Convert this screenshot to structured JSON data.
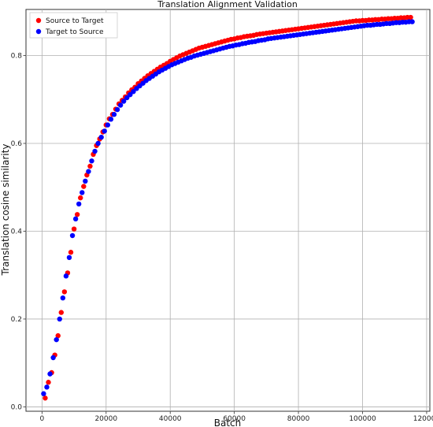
{
  "chart_data": {
    "type": "scatter",
    "title": "Translation Alignment Validation",
    "xlabel": "Batch",
    "ylabel": "Translation cosine similarity",
    "xlim": [
      -5000,
      121000
    ],
    "ylim": [
      -0.01,
      0.905
    ],
    "xticks": [
      0,
      20000,
      40000,
      60000,
      80000,
      100000,
      120000
    ],
    "yticks": [
      0.0,
      0.2,
      0.4,
      0.6,
      0.8
    ],
    "xtick_labels": [
      "0",
      "20000",
      "40000",
      "60000",
      "80000",
      "100000",
      "120000"
    ],
    "ytick_labels": [
      "0.0",
      "0.2",
      "0.4",
      "0.6",
      "0.8"
    ],
    "grid": true,
    "legend_position": "top-left",
    "series": [
      {
        "name": "Source to Target",
        "color": "#ff0000",
        "points": [
          [
            1000,
            0.02
          ],
          [
            2000,
            0.056
          ],
          [
            3000,
            0.078
          ],
          [
            4000,
            0.118
          ],
          [
            5000,
            0.162
          ],
          [
            6000,
            0.215
          ],
          [
            7000,
            0.262
          ],
          [
            8000,
            0.305
          ],
          [
            9000,
            0.352
          ],
          [
            10000,
            0.405
          ],
          [
            11000,
            0.438
          ],
          [
            12000,
            0.476
          ],
          [
            13000,
            0.502
          ],
          [
            14000,
            0.528
          ],
          [
            15000,
            0.548
          ],
          [
            16000,
            0.575
          ],
          [
            17000,
            0.595
          ],
          [
            18000,
            0.61
          ],
          [
            19000,
            0.626
          ],
          [
            20000,
            0.642
          ],
          [
            21000,
            0.656
          ],
          [
            22000,
            0.666
          ],
          [
            23000,
            0.678
          ],
          [
            24000,
            0.69
          ],
          [
            25000,
            0.698
          ],
          [
            26000,
            0.706
          ],
          [
            27000,
            0.715
          ],
          [
            28000,
            0.722
          ],
          [
            29000,
            0.728
          ],
          [
            30000,
            0.736
          ],
          [
            31000,
            0.742
          ],
          [
            32000,
            0.748
          ],
          [
            33000,
            0.754
          ],
          [
            34000,
            0.759
          ],
          [
            35000,
            0.764
          ],
          [
            36000,
            0.769
          ],
          [
            37000,
            0.774
          ],
          [
            38000,
            0.778
          ],
          [
            39000,
            0.782
          ],
          [
            40000,
            0.787
          ],
          [
            41000,
            0.791
          ],
          [
            42000,
            0.795
          ],
          [
            43000,
            0.799
          ],
          [
            44000,
            0.802
          ],
          [
            45000,
            0.805
          ],
          [
            46000,
            0.808
          ],
          [
            47000,
            0.811
          ],
          [
            48000,
            0.814
          ],
          [
            49000,
            0.817
          ],
          [
            50000,
            0.819
          ],
          [
            51000,
            0.821
          ],
          [
            52000,
            0.823
          ],
          [
            53000,
            0.825
          ],
          [
            54000,
            0.827
          ],
          [
            55000,
            0.829
          ],
          [
            56000,
            0.831
          ],
          [
            57000,
            0.833
          ],
          [
            58000,
            0.835
          ],
          [
            59000,
            0.837
          ],
          [
            60000,
            0.838
          ],
          [
            61000,
            0.84
          ],
          [
            62000,
            0.841
          ],
          [
            63000,
            0.843
          ],
          [
            64000,
            0.844
          ],
          [
            65000,
            0.845
          ],
          [
            66000,
            0.846
          ],
          [
            67000,
            0.848
          ],
          [
            68000,
            0.849
          ],
          [
            69000,
            0.85
          ],
          [
            70000,
            0.851
          ],
          [
            71000,
            0.852
          ],
          [
            72000,
            0.853
          ],
          [
            73000,
            0.854
          ],
          [
            74000,
            0.855
          ],
          [
            75000,
            0.856
          ],
          [
            76000,
            0.857
          ],
          [
            77000,
            0.858
          ],
          [
            78000,
            0.859
          ],
          [
            79000,
            0.86
          ],
          [
            80000,
            0.861
          ],
          [
            81000,
            0.862
          ],
          [
            82000,
            0.863
          ],
          [
            83000,
            0.864
          ],
          [
            84000,
            0.865
          ],
          [
            85000,
            0.866
          ],
          [
            86000,
            0.867
          ],
          [
            87000,
            0.868
          ],
          [
            88000,
            0.869
          ],
          [
            89000,
            0.87
          ],
          [
            90000,
            0.871
          ],
          [
            91000,
            0.872
          ],
          [
            92000,
            0.873
          ],
          [
            93000,
            0.874
          ],
          [
            94000,
            0.875
          ],
          [
            95000,
            0.876
          ],
          [
            96000,
            0.877
          ],
          [
            97000,
            0.878
          ],
          [
            98000,
            0.879
          ],
          [
            99000,
            0.879
          ],
          [
            100000,
            0.88
          ],
          [
            101000,
            0.88
          ],
          [
            102000,
            0.881
          ],
          [
            103000,
            0.881
          ],
          [
            104000,
            0.882
          ],
          [
            105000,
            0.882
          ],
          [
            106000,
            0.883
          ],
          [
            107000,
            0.883
          ],
          [
            108000,
            0.884
          ],
          [
            109000,
            0.884
          ],
          [
            110000,
            0.885
          ],
          [
            111000,
            0.885
          ],
          [
            112000,
            0.886
          ],
          [
            113000,
            0.886
          ],
          [
            114000,
            0.887
          ],
          [
            115000,
            0.887
          ]
        ]
      },
      {
        "name": "Target to Source",
        "color": "#0000ff",
        "points": [
          [
            500,
            0.03
          ],
          [
            1500,
            0.045
          ],
          [
            2500,
            0.075
          ],
          [
            3500,
            0.112
          ],
          [
            4500,
            0.153
          ],
          [
            5500,
            0.2
          ],
          [
            6500,
            0.248
          ],
          [
            7500,
            0.298
          ],
          [
            8500,
            0.34
          ],
          [
            9500,
            0.39
          ],
          [
            10500,
            0.428
          ],
          [
            11500,
            0.462
          ],
          [
            12500,
            0.488
          ],
          [
            13500,
            0.514
          ],
          [
            14500,
            0.536
          ],
          [
            15500,
            0.56
          ],
          [
            16500,
            0.582
          ],
          [
            17500,
            0.6
          ],
          [
            18500,
            0.614
          ],
          [
            19500,
            0.628
          ],
          [
            20500,
            0.642
          ],
          [
            21500,
            0.655
          ],
          [
            22500,
            0.666
          ],
          [
            23500,
            0.677
          ],
          [
            24500,
            0.687
          ],
          [
            25500,
            0.696
          ],
          [
            26500,
            0.704
          ],
          [
            27500,
            0.711
          ],
          [
            28500,
            0.718
          ],
          [
            29500,
            0.725
          ],
          [
            30500,
            0.731
          ],
          [
            31500,
            0.737
          ],
          [
            32500,
            0.743
          ],
          [
            33500,
            0.748
          ],
          [
            34500,
            0.753
          ],
          [
            35500,
            0.758
          ],
          [
            36500,
            0.763
          ],
          [
            37500,
            0.767
          ],
          [
            38500,
            0.771
          ],
          [
            39500,
            0.775
          ],
          [
            40500,
            0.779
          ],
          [
            41500,
            0.782
          ],
          [
            42500,
            0.785
          ],
          [
            43500,
            0.788
          ],
          [
            44500,
            0.791
          ],
          [
            45500,
            0.794
          ],
          [
            46500,
            0.796
          ],
          [
            47500,
            0.799
          ],
          [
            48500,
            0.801
          ],
          [
            49500,
            0.803
          ],
          [
            50500,
            0.805
          ],
          [
            51500,
            0.807
          ],
          [
            52500,
            0.809
          ],
          [
            53500,
            0.811
          ],
          [
            54500,
            0.813
          ],
          [
            55500,
            0.815
          ],
          [
            56500,
            0.817
          ],
          [
            57500,
            0.819
          ],
          [
            58500,
            0.821
          ],
          [
            59500,
            0.822
          ],
          [
            60500,
            0.824
          ],
          [
            61500,
            0.825
          ],
          [
            62500,
            0.827
          ],
          [
            63500,
            0.828
          ],
          [
            64500,
            0.83
          ],
          [
            65500,
            0.831
          ],
          [
            66500,
            0.832
          ],
          [
            67500,
            0.834
          ],
          [
            68500,
            0.835
          ],
          [
            69500,
            0.836
          ],
          [
            70500,
            0.838
          ],
          [
            71500,
            0.839
          ],
          [
            72500,
            0.84
          ],
          [
            73500,
            0.841
          ],
          [
            74500,
            0.842
          ],
          [
            75500,
            0.843
          ],
          [
            76500,
            0.844
          ],
          [
            77500,
            0.845
          ],
          [
            78500,
            0.846
          ],
          [
            79500,
            0.847
          ],
          [
            80500,
            0.848
          ],
          [
            81500,
            0.849
          ],
          [
            82500,
            0.85
          ],
          [
            83500,
            0.851
          ],
          [
            84500,
            0.852
          ],
          [
            85500,
            0.853
          ],
          [
            86500,
            0.854
          ],
          [
            87500,
            0.855
          ],
          [
            88500,
            0.856
          ],
          [
            89500,
            0.857
          ],
          [
            90500,
            0.858
          ],
          [
            91500,
            0.859
          ],
          [
            92500,
            0.86
          ],
          [
            93500,
            0.861
          ],
          [
            94500,
            0.862
          ],
          [
            95500,
            0.863
          ],
          [
            96500,
            0.864
          ],
          [
            97500,
            0.865
          ],
          [
            98500,
            0.866
          ],
          [
            99500,
            0.867
          ],
          [
            100500,
            0.868
          ],
          [
            101500,
            0.869
          ],
          [
            102500,
            0.869
          ],
          [
            103500,
            0.87
          ],
          [
            104500,
            0.871
          ],
          [
            105500,
            0.871
          ],
          [
            106500,
            0.872
          ],
          [
            107500,
            0.873
          ],
          [
            108500,
            0.873
          ],
          [
            109500,
            0.874
          ],
          [
            110500,
            0.875
          ],
          [
            111500,
            0.875
          ],
          [
            112500,
            0.876
          ],
          [
            113500,
            0.876
          ],
          [
            114500,
            0.877
          ],
          [
            115500,
            0.877
          ]
        ]
      }
    ]
  }
}
